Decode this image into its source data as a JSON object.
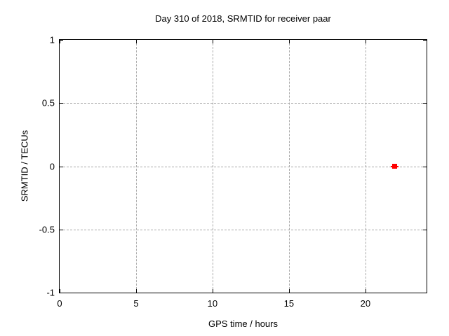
{
  "chart_data": {
    "type": "scatter",
    "title": "Day 310 of 2018, SRMTID for receiver paar",
    "xlabel": "GPS time / hours",
    "ylabel": "SRMTID / TECUs",
    "xlim": [
      0,
      24
    ],
    "ylim": [
      -1,
      1
    ],
    "xticks": [
      0,
      5,
      10,
      15,
      20
    ],
    "yticks": [
      -1,
      -0.5,
      0,
      0.5,
      1
    ],
    "grid": "dashed",
    "legend": "none",
    "series": [
      {
        "name": "SRMTID",
        "marker": "filled-square",
        "errorbars": "x",
        "color": "#ff0000",
        "points": [
          {
            "x": 21.9,
            "y": 0.0,
            "xerr": 0.25
          }
        ]
      }
    ]
  },
  "colors": {
    "background": "#ffffff",
    "axis": "#000000",
    "grid": "#a8a8a8",
    "text": "#000000",
    "marker": "#ff0000"
  }
}
